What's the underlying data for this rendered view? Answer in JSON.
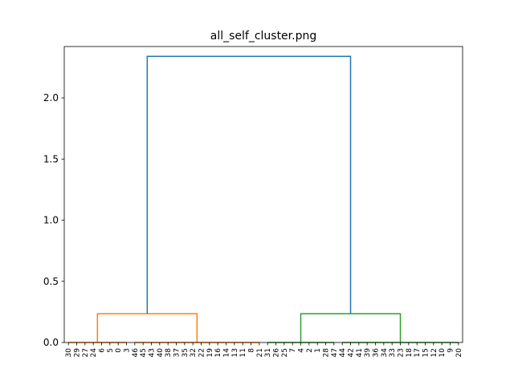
{
  "chart_data": {
    "type": "dendrogram",
    "title": "all_self_cluster.png",
    "xlabel": "",
    "ylabel": "",
    "ylim": [
      0,
      2.42
    ],
    "yticks": [
      0.0,
      0.5,
      1.0,
      1.5,
      2.0
    ],
    "ytick_labels": [
      "0.0",
      "0.5",
      "1.0",
      "1.5",
      "2.0"
    ],
    "grid": false,
    "leaf_order": [
      "30",
      "29",
      "27",
      "24",
      "6",
      "5",
      "0",
      "3",
      "46",
      "45",
      "43",
      "40",
      "38",
      "37",
      "35",
      "32",
      "22",
      "19",
      "16",
      "14",
      "13",
      "11",
      "8",
      "21",
      "31",
      "26",
      "25",
      "7",
      "4",
      "2",
      "1",
      "28",
      "47",
      "44",
      "42",
      "41",
      "39",
      "36",
      "34",
      "33",
      "23",
      "18",
      "17",
      "15",
      "12",
      "10",
      "9",
      "20"
    ],
    "clusters": [
      {
        "name": "",
        "color": "#ff7f0e",
        "leaves": [
          "30",
          "29",
          "27",
          "24",
          "6",
          "5",
          "0",
          "3",
          "46",
          "45",
          "43",
          "40",
          "38",
          "37",
          "35",
          "32",
          "22",
          "19",
          "16",
          "14",
          "13",
          "11",
          "8",
          "21"
        ],
        "merge_height": 0.235,
        "left_group": [
          "30",
          "29",
          "27",
          "24",
          "6",
          "5",
          "0",
          "3"
        ],
        "right_group": [
          "46",
          "45",
          "43",
          "40",
          "38",
          "37",
          "35",
          "32",
          "22",
          "19",
          "16",
          "14",
          "13",
          "11",
          "8",
          "21"
        ],
        "group_height": 0.0
      },
      {
        "name": "",
        "color": "#2ca02c",
        "leaves": [
          "31",
          "26",
          "25",
          "7",
          "4",
          "2",
          "1",
          "28",
          "47",
          "44",
          "42",
          "41",
          "39",
          "36",
          "34",
          "33",
          "23",
          "18",
          "17",
          "15",
          "12",
          "10",
          "9",
          "20"
        ],
        "merge_height": 0.235,
        "left_group": [
          "31",
          "26",
          "25",
          "7",
          "4",
          "2",
          "1",
          "28",
          "47"
        ],
        "right_group": [
          "44",
          "42",
          "41",
          "39",
          "36",
          "34",
          "33",
          "23",
          "18",
          "17",
          "15",
          "12",
          "10",
          "9",
          "20"
        ],
        "group_height": 0.0
      }
    ],
    "root": {
      "color": "#1f77b4",
      "merge_height": 2.34
    }
  }
}
